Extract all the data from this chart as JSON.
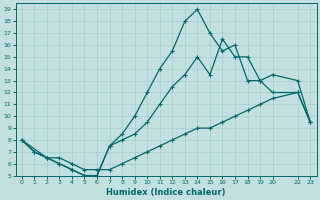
{
  "xlabel": "Humidex (Indice chaleur)",
  "background_color": "#c2e0e0",
  "grid_color": "#a8d0d0",
  "line_color": "#006868",
  "xlim": [
    -0.5,
    23.5
  ],
  "ylim": [
    5,
    19.5
  ],
  "xticks": [
    0,
    1,
    2,
    3,
    4,
    5,
    6,
    7,
    8,
    9,
    10,
    11,
    12,
    13,
    14,
    15,
    16,
    17,
    18,
    19,
    20,
    22,
    23
  ],
  "yticks": [
    5,
    6,
    7,
    8,
    9,
    10,
    11,
    12,
    13,
    14,
    15,
    16,
    17,
    18,
    19
  ],
  "curve_top_x": [
    0,
    1,
    2,
    3,
    4,
    5,
    6,
    7,
    8,
    9,
    10,
    11,
    12,
    13,
    14,
    15,
    16,
    17,
    18,
    19,
    20,
    22,
    23
  ],
  "curve_top_y": [
    8,
    7,
    6.5,
    6,
    5.5,
    5,
    5,
    7.5,
    8.5,
    10,
    12,
    14,
    15.5,
    18,
    19,
    17,
    15.5,
    16,
    13,
    13,
    13.5,
    13,
    9.5
  ],
  "curve_mid_x": [
    0,
    2,
    3,
    4,
    5,
    6,
    7,
    8,
    9,
    10,
    11,
    12,
    13,
    14,
    15,
    16,
    17,
    18,
    19,
    20,
    22,
    23
  ],
  "curve_mid_y": [
    8,
    6.5,
    6,
    5.5,
    5,
    5,
    7.5,
    8,
    8.5,
    9.5,
    11,
    12.5,
    13.5,
    15,
    13.5,
    16.5,
    15,
    15,
    13,
    12,
    12,
    9.5
  ],
  "curve_bot_x": [
    0,
    1,
    2,
    3,
    4,
    5,
    6,
    7,
    8,
    9,
    10,
    11,
    12,
    13,
    14,
    15,
    16,
    17,
    18,
    19,
    20,
    22,
    23
  ],
  "curve_bot_y": [
    8,
    7,
    6.5,
    6.5,
    6,
    5.5,
    5.5,
    5.5,
    6,
    6.5,
    7,
    7.5,
    8,
    8.5,
    9,
    9,
    9.5,
    10,
    10.5,
    11,
    11.5,
    12,
    9.5
  ]
}
